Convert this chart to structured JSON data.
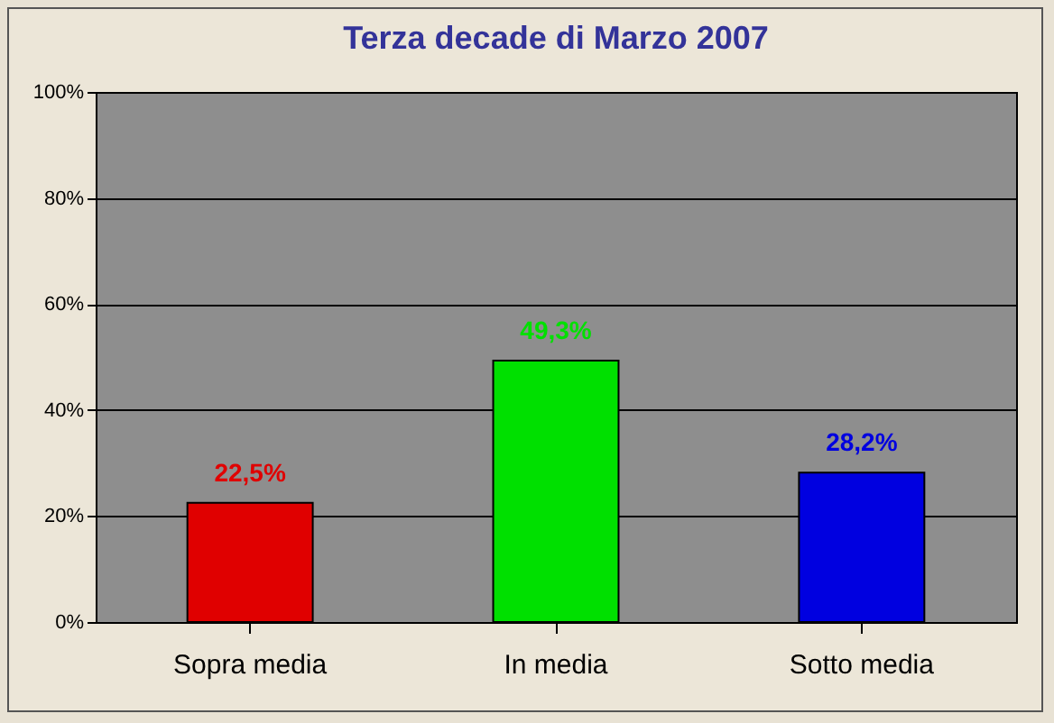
{
  "chart_data": {
    "type": "bar",
    "title": "Terza decade di Marzo 2007",
    "categories": [
      "Sopra media",
      "In media",
      "Sotto media"
    ],
    "values": [
      22.5,
      49.3,
      28.2
    ],
    "colors": [
      "#e00000",
      "#00e000",
      "#0000e0"
    ],
    "value_labels": [
      "22,5%",
      "49,3%",
      "28,2%"
    ],
    "ylim": [
      0,
      100
    ],
    "yticks": [
      {
        "value": 0,
        "label": "0%"
      },
      {
        "value": 20,
        "label": "20%"
      },
      {
        "value": 40,
        "label": "40%"
      },
      {
        "value": 60,
        "label": "60%"
      },
      {
        "value": 80,
        "label": "80%"
      },
      {
        "value": 100,
        "label": "100%"
      }
    ],
    "grid": "y",
    "legend": false
  }
}
